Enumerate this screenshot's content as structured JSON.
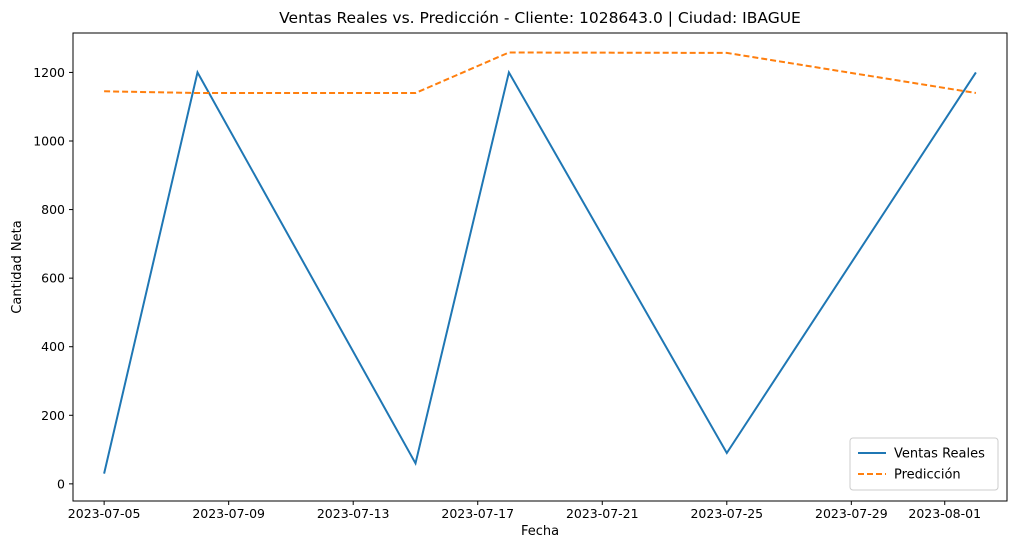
{
  "chart_data": {
    "type": "line",
    "title": "Ventas Reales vs. Predicción - Cliente: 1028643.0 | Ciudad: IBAGUE",
    "xlabel": "Fecha",
    "ylabel": "Cantidad Neta",
    "x_type": "date",
    "xlim": [
      "2023-07-04",
      "2023-08-03"
    ],
    "ylim": [
      -50,
      1315
    ],
    "x_ticks": [
      "2023-07-05",
      "2023-07-09",
      "2023-07-13",
      "2023-07-17",
      "2023-07-21",
      "2023-07-25",
      "2023-07-29",
      "2023-08-01"
    ],
    "y_ticks": [
      0,
      200,
      400,
      600,
      800,
      1000,
      1200
    ],
    "grid": false,
    "legend_position": "lower-right",
    "series": [
      {
        "name": "Ventas Reales",
        "color": "#1f77b4",
        "style": "solid",
        "x": [
          "2023-07-05",
          "2023-07-08",
          "2023-07-15",
          "2023-07-18",
          "2023-07-25",
          "2023-08-02"
        ],
        "y": [
          30,
          1200,
          60,
          1200,
          90,
          1200
        ]
      },
      {
        "name": "Predicción",
        "color": "#ff7f0e",
        "style": "dashed",
        "x": [
          "2023-07-05",
          "2023-07-08",
          "2023-07-15",
          "2023-07-18",
          "2023-07-25",
          "2023-08-02"
        ],
        "y": [
          1145,
          1140,
          1140,
          1258,
          1257,
          1140
        ]
      }
    ]
  }
}
